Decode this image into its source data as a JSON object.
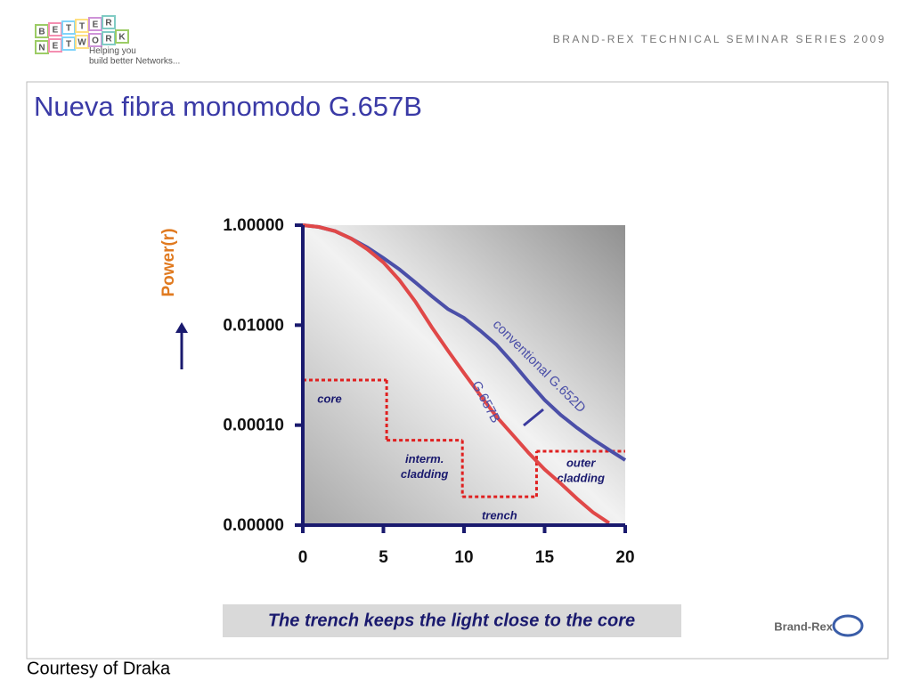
{
  "header": {
    "logo_letters": [
      "B",
      "E",
      "T",
      "T",
      "E",
      "R",
      "N",
      "E",
      "T",
      "W",
      "O",
      "R",
      "K"
    ],
    "tagline": [
      "Helping you",
      "build better Networks..."
    ],
    "series_title": "BRAND-REX TECHNICAL SEMINAR SERIES 2009"
  },
  "slide_title": "Nueva fibra monomodo G.657B",
  "chart_data": {
    "type": "line",
    "ylabel": "Power(r)",
    "log_y": true,
    "x": [
      0,
      1,
      2,
      3,
      4,
      5,
      6,
      7,
      8,
      9,
      10,
      11,
      12,
      13,
      14,
      15,
      16,
      17,
      18,
      19,
      20
    ],
    "series": [
      {
        "name": "conventional G.652D",
        "color": "#4b4fa8",
        "values": [
          1,
          0.92,
          0.76,
          0.54,
          0.36,
          0.22,
          0.13,
          0.071,
          0.038,
          0.021,
          0.014,
          0.0078,
          0.0041,
          0.0018,
          0.00074,
          0.00032,
          0.00016,
          8.9e-05,
          5.2e-05,
          3.2e-05,
          2e-05
        ]
      },
      {
        "name": "G.657B",
        "color": "#e04848",
        "values": [
          1,
          0.92,
          0.76,
          0.54,
          0.33,
          0.18,
          0.079,
          0.029,
          0.0091,
          0.0031,
          0.0011,
          0.0004,
          0.00015,
          6.5e-05,
          2.8e-05,
          1.3e-05,
          6.8e-06,
          3.4e-06,
          1.8e-06,
          1.1e-06,
          null
        ]
      }
    ],
    "xlim": [
      0,
      20
    ],
    "xticks": [
      0,
      5,
      10,
      15,
      20
    ],
    "ylim": [
      1e-06,
      1
    ],
    "yticks": [
      {
        "value": 1,
        "label": "1.00000"
      },
      {
        "value": 0.01,
        "label": "0.01000"
      },
      {
        "value": 0.0001,
        "label": "0.00010"
      },
      {
        "value": 1e-06,
        "label": "0.00000"
      }
    ],
    "profile": {
      "color": "#e02020",
      "x_edges": [
        0,
        5.2,
        9.9,
        14.5,
        20
      ],
      "levels": [
        0.0008,
        5e-05,
        3.7e-06,
        3e-05
      ],
      "labels": [
        [
          "core"
        ],
        [
          "interm.",
          "cladding"
        ],
        [
          "trench"
        ],
        [
          "outer",
          "cladding"
        ]
      ]
    },
    "caption": "The trench keeps the light close to the core"
  },
  "footer": {
    "credit": "Courtesy of Draka",
    "brand": "Brand-Rex"
  }
}
